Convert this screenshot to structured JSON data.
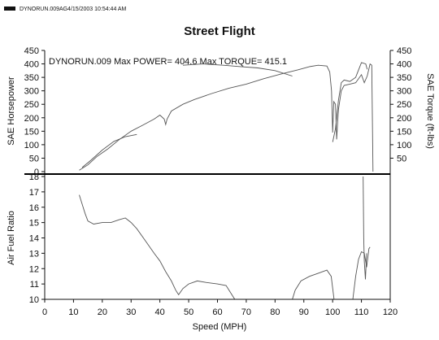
{
  "header": {
    "file_name": "DYNORUN.009AG",
    "timestamp": "4/15/2003 10:54:44 AM"
  },
  "chart_data": {
    "type": "line",
    "title": "Street Flight",
    "annotation": "DYNORUN.009  Max POWER= 404.6 Max TORQUE= 415.1",
    "xlabel": "Speed (MPH)",
    "xlim": [
      0,
      120
    ],
    "x_ticks": [
      0,
      10,
      20,
      30,
      40,
      50,
      60,
      70,
      80,
      90,
      100,
      110,
      120
    ],
    "grid": false,
    "colors": {
      "line": "#555555",
      "axis": "#111111",
      "separator": "#000000"
    },
    "panels": [
      {
        "id": "power-torque",
        "ylabel": "SAE Horsepower",
        "ylim": [
          0,
          450
        ],
        "y_ticks": [
          0,
          50,
          100,
          150,
          200,
          250,
          300,
          350,
          400,
          450
        ],
        "y2label": "SAE Torque (ft-lbs)",
        "y2lim": [
          0,
          450
        ],
        "y2_ticks": [
          50,
          100,
          150,
          200,
          250,
          300,
          350,
          400,
          450
        ],
        "series": [
          {
            "values": [
              [
                12,
                5
              ],
              [
                15,
                25
              ],
              [
                18,
                55
              ],
              [
                22,
                85
              ],
              [
                26,
                120
              ],
              [
                30,
                150
              ],
              [
                34,
                172
              ],
              [
                38,
                195
              ],
              [
                40,
                210
              ],
              [
                41.5,
                195
              ],
              [
                42,
                175
              ],
              [
                42.5,
                195
              ],
              [
                44,
                225
              ],
              [
                48,
                250
              ],
              [
                52,
                268
              ],
              [
                58,
                290
              ],
              [
                64,
                310
              ],
              [
                70,
                325
              ],
              [
                76,
                345
              ],
              [
                82,
                362
              ],
              [
                88,
                378
              ],
              [
                92,
                390
              ],
              [
                95,
                395
              ],
              [
                98,
                392
              ],
              [
                99,
                370
              ],
              [
                99.6,
                300
              ],
              [
                100,
                145
              ],
              [
                100.4,
                260
              ],
              [
                101,
                250
              ],
              [
                101.4,
                120
              ],
              [
                102,
                230
              ],
              [
                103,
                300
              ],
              [
                104,
                320
              ],
              [
                106,
                325
              ],
              [
                108,
                330
              ],
              [
                110,
                360
              ],
              [
                111,
                330
              ],
              [
                112,
                355
              ],
              [
                113,
                400
              ],
              [
                113.6,
                395
              ],
              [
                114,
                0
              ]
            ]
          },
          {
            "values": [
              [
                13,
                15
              ],
              [
                16,
                42
              ],
              [
                20,
                80
              ],
              [
                24,
                112
              ],
              [
                28,
                130
              ],
              [
                32,
                138
              ]
            ]
          },
          {
            "values": [
              [
                48,
                395
              ],
              [
                55,
                400
              ],
              [
                62,
                395
              ],
              [
                68,
                390
              ],
              [
                74,
                385
              ],
              [
                80,
                375
              ],
              [
                86,
                355
              ]
            ]
          },
          {
            "values": [
              [
                100,
                110
              ],
              [
                101,
                160
              ],
              [
                102,
                265
              ],
              [
                103,
                330
              ],
              [
                104,
                340
              ],
              [
                106,
                335
              ],
              [
                108,
                350
              ],
              [
                110,
                405
              ],
              [
                111.5,
                400
              ],
              [
                112,
                380
              ]
            ]
          }
        ]
      },
      {
        "id": "air-fuel",
        "ylabel": "Air Fuel Ratio",
        "ylim": [
          10,
          18
        ],
        "y_ticks": [
          10,
          11,
          12,
          13,
          14,
          15,
          16,
          17,
          18
        ],
        "series": [
          {
            "values": [
              [
                12,
                16.8
              ],
              [
                14,
                15.6
              ],
              [
                15,
                15.1
              ],
              [
                17,
                14.9
              ],
              [
                20,
                15.0
              ],
              [
                23,
                15.0
              ],
              [
                26,
                15.2
              ],
              [
                28,
                15.3
              ],
              [
                30,
                15.0
              ],
              [
                32,
                14.6
              ],
              [
                35,
                13.8
              ],
              [
                38,
                13.0
              ],
              [
                40,
                12.5
              ],
              [
                42,
                11.8
              ],
              [
                44,
                11.2
              ],
              [
                45.5,
                10.6
              ],
              [
                46.5,
                10.3
              ],
              [
                48,
                10.7
              ],
              [
                50,
                11.0
              ],
              [
                53,
                11.2
              ],
              [
                56,
                11.1
              ],
              [
                60,
                11.0
              ],
              [
                63,
                10.9
              ],
              [
                66,
                10.0
              ],
              [
                86,
                10.0
              ],
              [
                87,
                10.6
              ],
              [
                89,
                11.2
              ],
              [
                92,
                11.5
              ],
              [
                95,
                11.7
              ],
              [
                98,
                11.9
              ],
              [
                99.5,
                11.5
              ],
              [
                100.5,
                10.0
              ],
              [
                107,
                10.0
              ],
              [
                108,
                11.5
              ],
              [
                109,
                12.6
              ],
              [
                110,
                13.1
              ],
              [
                111,
                13.0
              ],
              [
                111.8,
                12.1
              ],
              [
                112.6,
                13.3
              ],
              [
                113,
                13.4
              ]
            ]
          },
          {
            "values": [
              [
                110.6,
                18
              ],
              [
                110.8,
                14.0
              ],
              [
                111.0,
                12.5
              ],
              [
                111.4,
                11.3
              ],
              [
                111.8,
                13.0
              ]
            ]
          }
        ]
      }
    ]
  }
}
